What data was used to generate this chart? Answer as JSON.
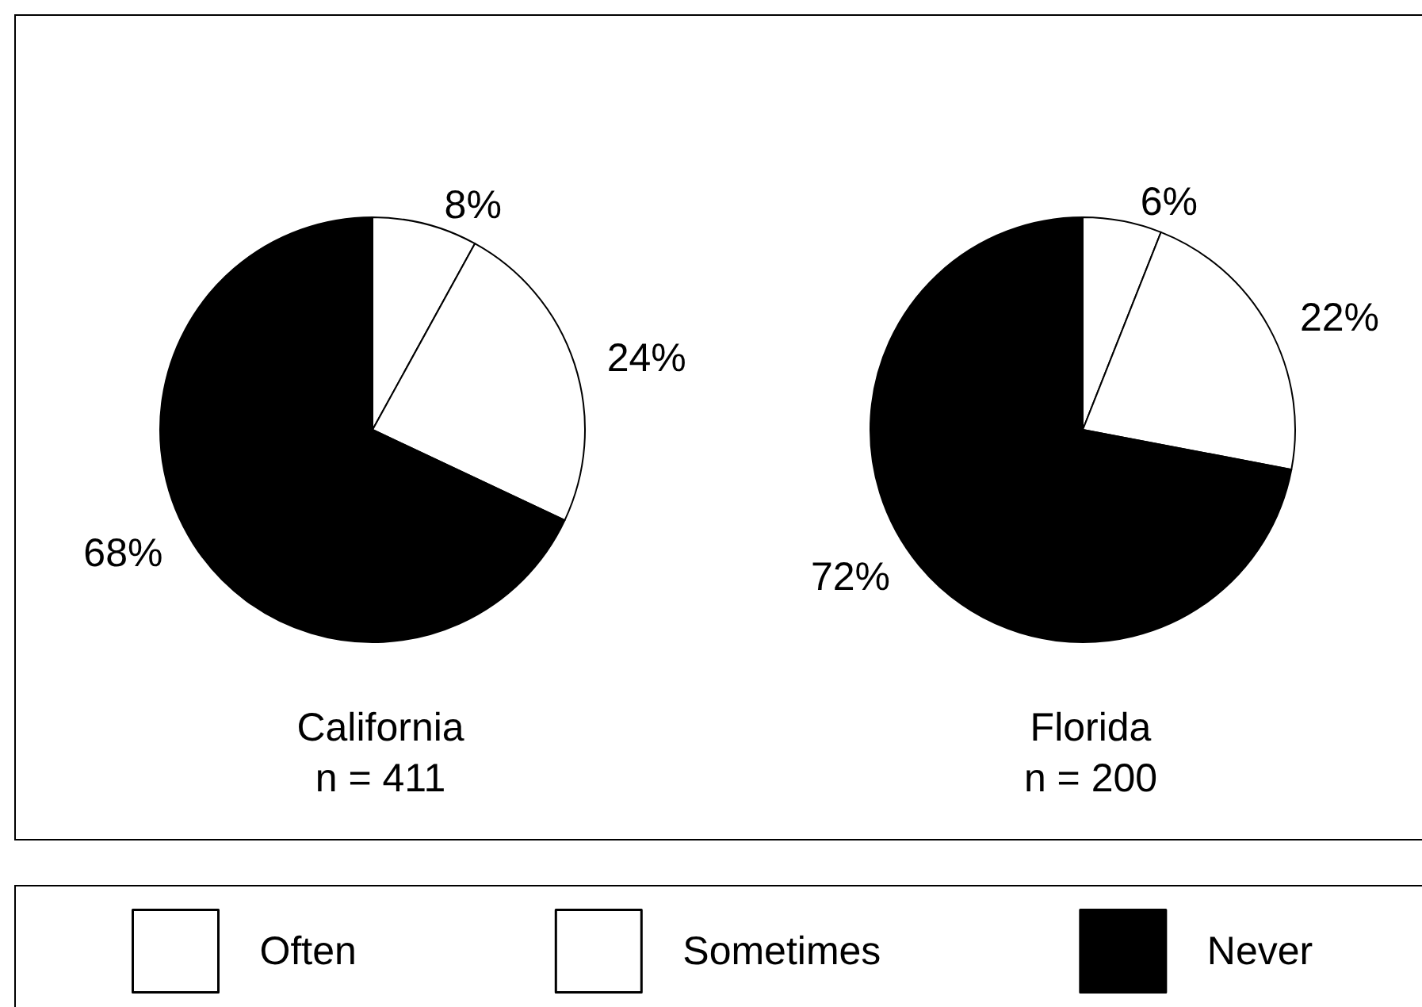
{
  "chart_data": {
    "type": "pie",
    "categories": [
      "Often",
      "Sometimes",
      "Never"
    ],
    "colors": [
      "#ffffff",
      "#ffffff",
      "#000000"
    ],
    "series": [
      {
        "name": "California",
        "values": [
          8,
          24,
          68
        ],
        "value_labels": [
          "8%",
          "24%",
          "68%"
        ]
      },
      {
        "name": "Florida",
        "values": [
          6,
          22,
          72
        ],
        "value_labels": [
          "6%",
          "22%",
          "72%"
        ]
      }
    ],
    "annotations": [
      "n = 411",
      "n = 200"
    ],
    "legend": "bottom"
  }
}
